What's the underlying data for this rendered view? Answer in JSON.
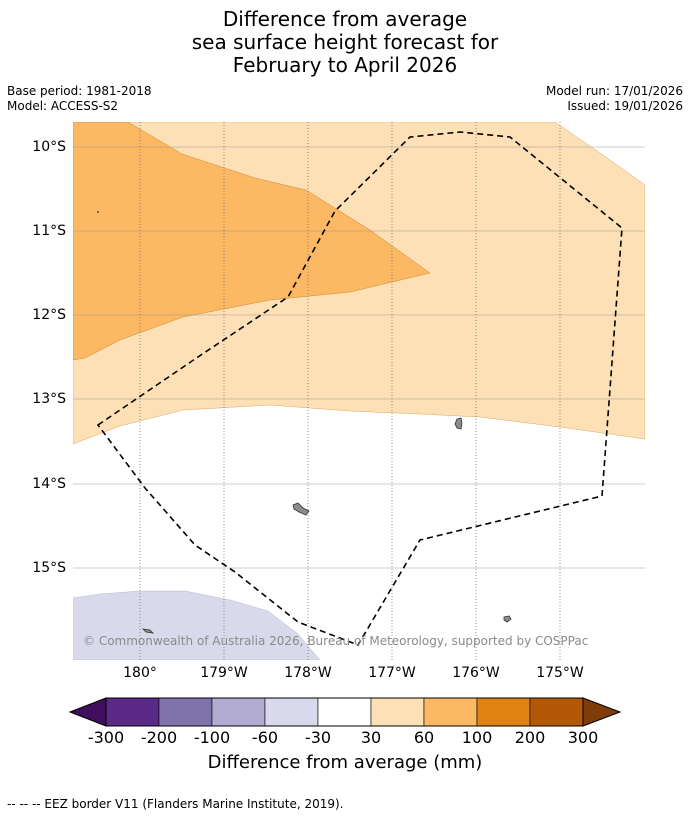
{
  "title": {
    "line1": "Difference from average",
    "line2": "sea surface height forecast for",
    "line3": "February to April 2026"
  },
  "meta": {
    "base_period": "Base period: 1981-2018",
    "model": "Model: ACCESS-S2",
    "model_run": "Model run: 17/01/2026",
    "issued": "Issued: 19/01/2026"
  },
  "map": {
    "lat_labels": [
      "10°S",
      "11°S",
      "12°S",
      "13°S",
      "14°S",
      "15°S"
    ],
    "lon_labels": [
      "180°",
      "179°W",
      "178°W",
      "177°W",
      "176°W",
      "175°W"
    ],
    "attribution": "© Commonwealth of Australia 2026, Bureau of Meteorology, supported by COSPPac"
  },
  "colorbar": {
    "labels": [
      "-300",
      "-200",
      "-100",
      "-60",
      "-30",
      "30",
      "60",
      "100",
      "200",
      "300"
    ],
    "colors": [
      "#3f0f5e",
      "#5b2a86",
      "#8073ac",
      "#b2abd2",
      "#d8daeb",
      "#ffffff",
      "#fee0b6",
      "#fdb863",
      "#e08214",
      "#b35806",
      "#7f3b08"
    ],
    "title": "Difference from average (mm)"
  },
  "legend": {
    "text": "--  --  -- EEZ border V11 (Flanders Marine Institute, 2019)."
  }
}
